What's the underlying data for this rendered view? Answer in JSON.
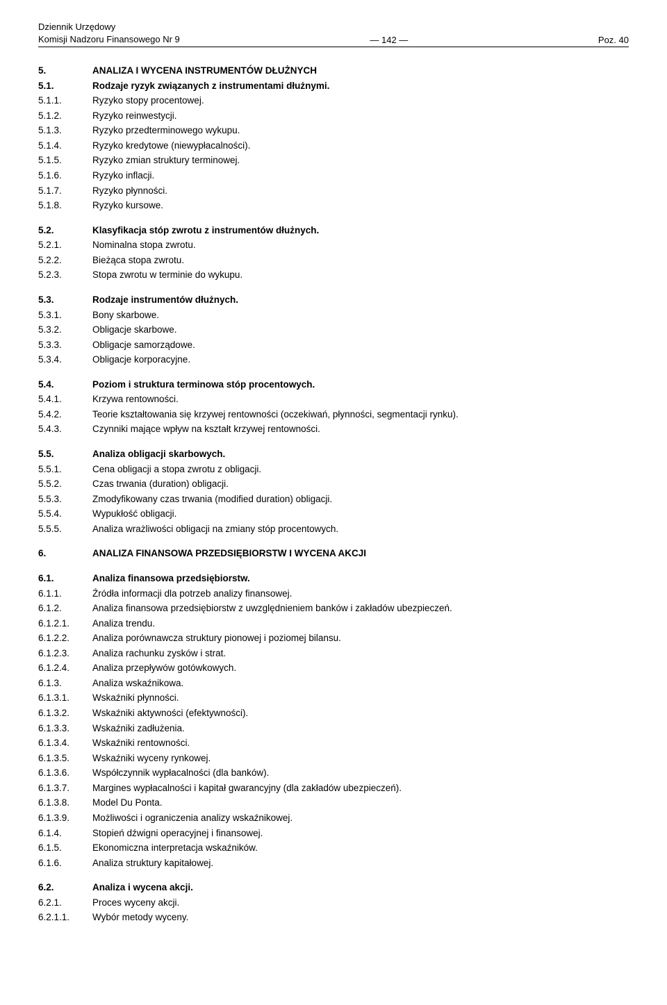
{
  "header": {
    "line1": "Dziennik Urzędowy",
    "line2": "Komisji Nadzoru Finansowego Nr 9",
    "center": "—  142  —",
    "right": "Poz. 40"
  },
  "sections": [
    {
      "num": "5.",
      "txt": "ANALIZA I WYCENA INSTRUMENTÓW DŁUŻNYCH",
      "bold": true,
      "section": true
    },
    {
      "num": "5.1.",
      "txt": "Rodzaje ryzyk związanych z instrumentami dłużnymi.",
      "bold": true,
      "section": false
    },
    {
      "num": "5.1.1.",
      "txt": "Ryzyko stopy procentowej.",
      "bold": false,
      "section": false
    },
    {
      "num": "5.1.2.",
      "txt": "Ryzyko reinwestycji.",
      "bold": false,
      "section": false
    },
    {
      "num": "5.1.3.",
      "txt": "Ryzyko przedterminowego wykupu.",
      "bold": false,
      "section": false
    },
    {
      "num": "5.1.4.",
      "txt": "Ryzyko kredytowe (niewypłacalności).",
      "bold": false,
      "section": false
    },
    {
      "num": "5.1.5.",
      "txt": "Ryzyko zmian struktury terminowej.",
      "bold": false,
      "section": false
    },
    {
      "num": "5.1.6.",
      "txt": "Ryzyko inflacji.",
      "bold": false,
      "section": false
    },
    {
      "num": "5.1.7.",
      "txt": "Ryzyko płynności.",
      "bold": false,
      "section": false
    },
    {
      "num": "5.1.8.",
      "txt": "Ryzyko kursowe.",
      "bold": false,
      "section": false
    },
    {
      "num": "5.2.",
      "txt": "Klasyfikacja stóp zwrotu z instrumentów dłużnych.",
      "bold": true,
      "section": true
    },
    {
      "num": "5.2.1.",
      "txt": "Nominalna stopa zwrotu.",
      "bold": false,
      "section": false
    },
    {
      "num": "5.2.2.",
      "txt": "Bieżąca stopa zwrotu.",
      "bold": false,
      "section": false
    },
    {
      "num": "5.2.3.",
      "txt": "Stopa zwrotu w terminie do wykupu.",
      "bold": false,
      "section": false
    },
    {
      "num": "5.3.",
      "txt": "Rodzaje instrumentów dłużnych.",
      "bold": true,
      "section": true
    },
    {
      "num": "5.3.1.",
      "txt": "Bony skarbowe.",
      "bold": false,
      "section": false
    },
    {
      "num": "5.3.2.",
      "txt": "Obligacje skarbowe.",
      "bold": false,
      "section": false
    },
    {
      "num": "5.3.3.",
      "txt": "Obligacje samorządowe.",
      "bold": false,
      "section": false
    },
    {
      "num": "5.3.4.",
      "txt": "Obligacje korporacyjne.",
      "bold": false,
      "section": false
    },
    {
      "num": "5.4.",
      "txt": "Poziom i struktura terminowa stóp procentowych.",
      "bold": true,
      "section": true
    },
    {
      "num": "5.4.1.",
      "txt": "Krzywa rentowności.",
      "bold": false,
      "section": false
    },
    {
      "num": "5.4.2.",
      "txt": "Teorie kształtowania się krzywej rentowności (oczekiwań, płynności, segmentacji rynku).",
      "bold": false,
      "section": false
    },
    {
      "num": "5.4.3.",
      "txt": "Czynniki mające wpływ na kształt krzywej rentowności.",
      "bold": false,
      "section": false
    },
    {
      "num": "5.5.",
      "txt": "Analiza obligacji skarbowych.",
      "bold": true,
      "section": true
    },
    {
      "num": "5.5.1.",
      "txt": "Cena obligacji a stopa zwrotu z obligacji.",
      "bold": false,
      "section": false
    },
    {
      "num": "5.5.2.",
      "txt": "Czas trwania (duration) obligacji.",
      "bold": false,
      "section": false
    },
    {
      "num": "5.5.3.",
      "txt": "Zmodyfikowany czas trwania (modified duration) obligacji.",
      "bold": false,
      "section": false
    },
    {
      "num": "5.5.4.",
      "txt": "Wypukłość obligacji.",
      "bold": false,
      "section": false
    },
    {
      "num": "5.5.5.",
      "txt": "Analiza wrażliwości obligacji na zmiany stóp procentowych.",
      "bold": false,
      "section": false
    },
    {
      "num": "6.",
      "txt": "ANALIZA FINANSOWA PRZEDSIĘBIORSTW I WYCENA AKCJI",
      "bold": true,
      "section": true
    },
    {
      "num": "6.1.",
      "txt": "Analiza finansowa przedsiębiorstw.",
      "bold": true,
      "section": true
    },
    {
      "num": "6.1.1.",
      "txt": "Źródła informacji dla potrzeb analizy finansowej.",
      "bold": false,
      "section": false
    },
    {
      "num": "6.1.2.",
      "txt": "Analiza finansowa przedsiębiorstw z uwzględnieniem banków i zakładów ubezpieczeń.",
      "bold": false,
      "section": false
    },
    {
      "num": "6.1.2.1.",
      "txt": "Analiza trendu.",
      "bold": false,
      "section": false
    },
    {
      "num": "6.1.2.2.",
      "txt": "Analiza porównawcza struktury pionowej i poziomej bilansu.",
      "bold": false,
      "section": false
    },
    {
      "num": "6.1.2.3.",
      "txt": "Analiza rachunku zysków i strat.",
      "bold": false,
      "section": false
    },
    {
      "num": "6.1.2.4.",
      "txt": "Analiza przepływów gotówkowych.",
      "bold": false,
      "section": false
    },
    {
      "num": "6.1.3.",
      "txt": "Analiza wskaźnikowa.",
      "bold": false,
      "section": false
    },
    {
      "num": "6.1.3.1.",
      "txt": "Wskaźniki płynności.",
      "bold": false,
      "section": false
    },
    {
      "num": "6.1.3.2.",
      "txt": "Wskaźniki aktywności (efektywności).",
      "bold": false,
      "section": false
    },
    {
      "num": "6.1.3.3.",
      "txt": "Wskaźniki zadłużenia.",
      "bold": false,
      "section": false
    },
    {
      "num": "6.1.3.4.",
      "txt": "Wskaźniki rentowności.",
      "bold": false,
      "section": false
    },
    {
      "num": "6.1.3.5.",
      "txt": "Wskaźniki wyceny rynkowej.",
      "bold": false,
      "section": false
    },
    {
      "num": "6.1.3.6.",
      "txt": "Współczynnik wypłacalności (dla banków).",
      "bold": false,
      "section": false
    },
    {
      "num": "6.1.3.7.",
      "txt": "Margines wypłacalności i kapitał gwarancyjny (dla zakładów ubezpieczeń).",
      "bold": false,
      "section": false
    },
    {
      "num": "6.1.3.8.",
      "txt": "Model Du Ponta.",
      "bold": false,
      "section": false
    },
    {
      "num": "6.1.3.9.",
      "txt": "Możliwości i ograniczenia analizy wskaźnikowej.",
      "bold": false,
      "section": false
    },
    {
      "num": "6.1.4.",
      "txt": "Stopień dźwigni operacyjnej i finansowej.",
      "bold": false,
      "section": false
    },
    {
      "num": "6.1.5.",
      "txt": "Ekonomiczna interpretacja wskaźników.",
      "bold": false,
      "section": false
    },
    {
      "num": "6.1.6.",
      "txt": "Analiza struktury kapitałowej.",
      "bold": false,
      "section": false
    },
    {
      "num": "6.2.",
      "txt": "Analiza i wycena akcji.",
      "bold": true,
      "section": true
    },
    {
      "num": "6.2.1.",
      "txt": "Proces wyceny akcji.",
      "bold": false,
      "section": false
    },
    {
      "num": "6.2.1.1.",
      "txt": "Wybór metody wyceny.",
      "bold": false,
      "section": false
    }
  ]
}
